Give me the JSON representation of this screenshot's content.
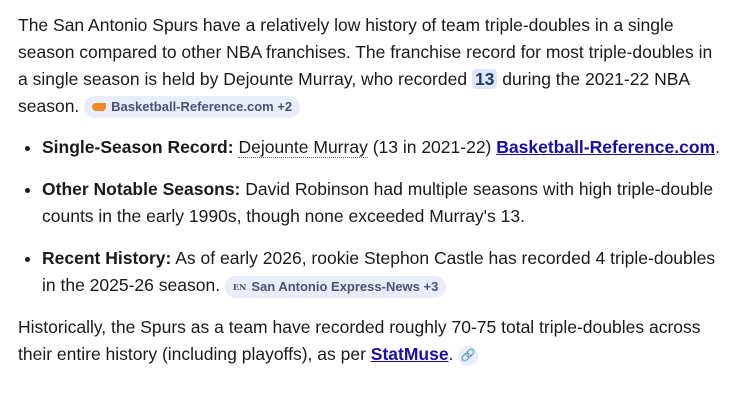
{
  "intro": {
    "text_before": "The San Antonio Spurs have a relatively low history of team triple-doubles in a single season compared to other NBA franchises. The franchise record for most triple-doubles in a single season is held by Dejounte Murray, who recorded ",
    "highlight": "13",
    "text_after": " during the 2021-22 NBA season. ",
    "source_chip": {
      "label": "Basketball-Reference.com +2",
      "icon": "basketball-reference-icon",
      "color": "#f0892a"
    }
  },
  "bullets": [
    {
      "label": "Single-Season Record:",
      "name": "Dejounte Murray",
      "text": " (13 in 2021-22) ",
      "link": "Basketball-Reference.com",
      "tail": "."
    },
    {
      "label": "Other Notable Seasons:",
      "text": " David Robinson had multiple seasons with high triple-double counts in the early 1990s, though none exceeded Murray's 13."
    },
    {
      "label": "Recent History:",
      "text": " As of early 2026, rookie Stephon Castle has recorded 4 triple-doubles in the 2025-26 season. ",
      "source_chip": {
        "label": "San Antonio Express-News +3",
        "icon_text": "EN"
      }
    }
  ],
  "outro": {
    "text": "Historically, the Spurs as a team have recorded roughly 70-75 total triple-doubles across their entire history (including playoffs), as per ",
    "link": "StatMuse",
    "tail": ".",
    "link_icon": "link-icon"
  }
}
